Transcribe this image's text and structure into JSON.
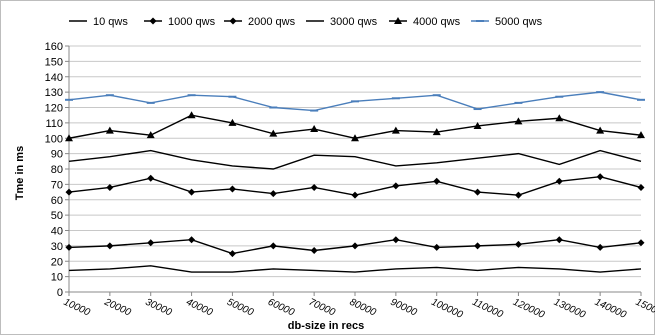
{
  "chart_data": {
    "type": "line",
    "xlabel": "db-size in recs",
    "ylabel": "Tme in ms",
    "ylim": [
      0,
      160
    ],
    "ytick_step": 10,
    "grid": "horizontal",
    "legend_position": "top",
    "x": [
      "10000",
      "20000",
      "30000",
      "40000",
      "50000",
      "60000",
      "70000",
      "80000",
      "90000",
      "100000",
      "110000",
      "120000",
      "130000",
      "140000",
      "150000"
    ],
    "series": [
      {
        "name": "10 qws",
        "marker": "none",
        "color": "#000000",
        "values": [
          14,
          15,
          17,
          13,
          13,
          15,
          14,
          13,
          15,
          16,
          14,
          16,
          15,
          13,
          15
        ]
      },
      {
        "name": "1000 qws",
        "marker": "diamond",
        "color": "#000000",
        "values": [
          29,
          30,
          32,
          34,
          25,
          30,
          27,
          30,
          34,
          29,
          30,
          31,
          34,
          29,
          32
        ]
      },
      {
        "name": "2000 qws",
        "marker": "diamond",
        "color": "#000000",
        "values": [
          65,
          68,
          74,
          65,
          67,
          64,
          68,
          63,
          69,
          72,
          65,
          63,
          72,
          75,
          68
        ]
      },
      {
        "name": "3000 qws",
        "marker": "none",
        "color": "#000000",
        "values": [
          85,
          88,
          92,
          86,
          82,
          80,
          89,
          88,
          82,
          84,
          87,
          90,
          83,
          92,
          85
        ]
      },
      {
        "name": "4000 qws",
        "marker": "triangle",
        "color": "#000000",
        "values": [
          100,
          105,
          102,
          115,
          110,
          103,
          106,
          100,
          105,
          104,
          108,
          111,
          113,
          105,
          102
        ]
      },
      {
        "name": "5000 qws",
        "marker": "dash",
        "color": "#4a7ebb",
        "values": [
          125,
          128,
          123,
          128,
          127,
          120,
          118,
          124,
          126,
          128,
          119,
          123,
          127,
          130,
          125
        ]
      }
    ]
  }
}
